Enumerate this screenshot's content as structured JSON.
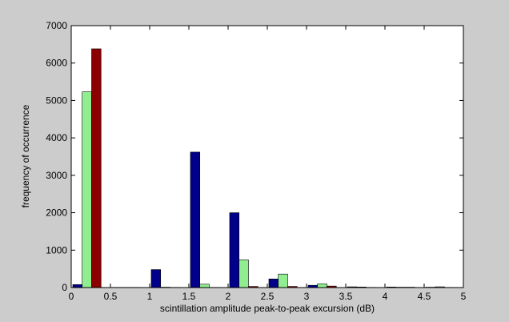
{
  "chart_data": {
    "type": "bar",
    "title": "",
    "xlabel": "scintillation amplitude peak-to-peak excursion (dB)",
    "ylabel": "frequency of occurrence",
    "xlim": [
      0,
      5
    ],
    "ylim": [
      0,
      7000
    ],
    "grid": false,
    "legend": "none",
    "xticks": [
      "0",
      "0.5",
      "1",
      "1.5",
      "2",
      "2.5",
      "3",
      "3.5",
      "4",
      "4.5",
      "5"
    ],
    "yticks": [
      "0",
      "1000",
      "2000",
      "3000",
      "4000",
      "5000",
      "6000",
      "7000"
    ],
    "bin_centers": [
      0.2,
      0.7,
      1.2,
      1.7,
      2.2,
      2.7,
      3.2,
      3.7,
      4.2,
      4.7
    ],
    "bar_width": 0.12,
    "series": [
      {
        "color": "#00008b",
        "values": [
          80,
          5,
          480,
          3620,
          2000,
          230,
          60,
          20,
          15,
          10
        ]
      },
      {
        "color": "#90ee90",
        "values": [
          5230,
          5,
          10,
          90,
          740,
          360,
          100,
          15,
          10,
          20
        ]
      },
      {
        "color": "#8b0000",
        "values": [
          6380,
          5,
          5,
          5,
          30,
          30,
          40,
          5,
          10,
          5
        ]
      }
    ]
  }
}
